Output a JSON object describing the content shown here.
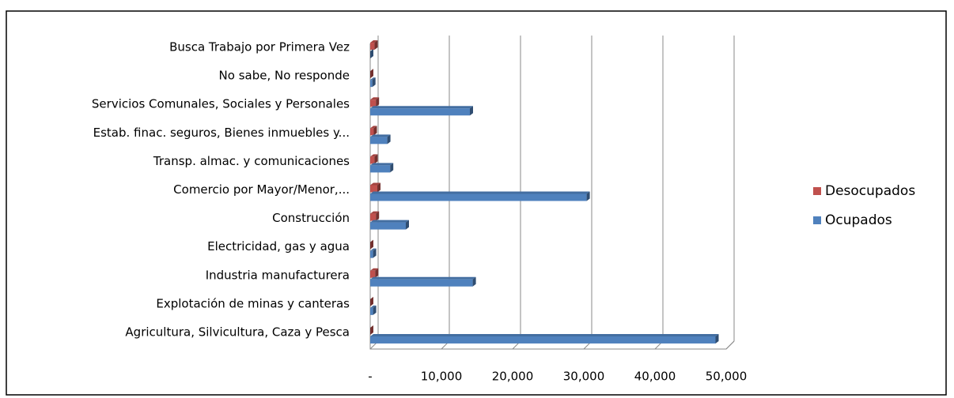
{
  "chart_data": {
    "type": "bar",
    "orientation": "horizontal",
    "categories": [
      "Agricultura, Silvicultura, Caza y Pesca",
      "Explotación de minas y canteras",
      "Industria manufacturera",
      "Electricidad, gas y agua",
      "Construcción",
      "Comercio por Mayor/Menor,...",
      "Transp. almac. y comunicaciones",
      "Estab. finac. seguros, Bienes inmuebles y...",
      "Servicios Comunales, Sociales y Personales",
      "No sabe,  No responde",
      "Busca Trabajo por Primera Vez"
    ],
    "series": [
      {
        "name": "Desocupados",
        "color": "#c0504d",
        "values": [
          0,
          0,
          700,
          0,
          800,
          1000,
          600,
          500,
          800,
          0,
          600
        ]
      },
      {
        "name": "Ocupados",
        "color": "#4f81bd",
        "values": [
          48500,
          400,
          14400,
          400,
          5000,
          30400,
          2800,
          2400,
          14000,
          300,
          0
        ]
      }
    ],
    "xlim": [
      0,
      50000
    ],
    "xticks": [
      {
        "value": 0,
        "label": "-"
      },
      {
        "value": 10000,
        "label": "10,000"
      },
      {
        "value": 20000,
        "label": "20,000"
      },
      {
        "value": 30000,
        "label": "30,000"
      },
      {
        "value": 40000,
        "label": "40,000"
      },
      {
        "value": 50000,
        "label": "50,000"
      }
    ],
    "grid": true,
    "legend": "right"
  }
}
